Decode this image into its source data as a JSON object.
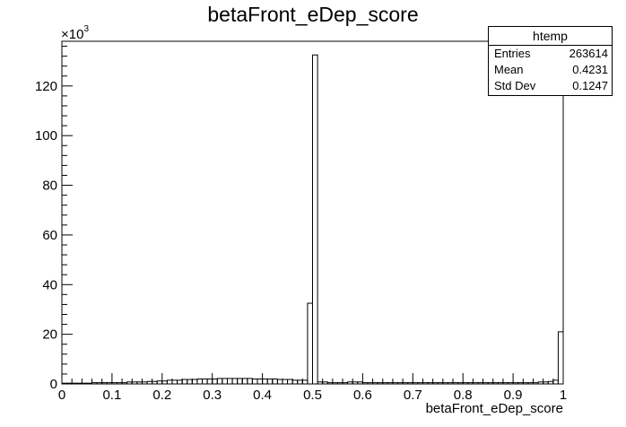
{
  "chart_data": {
    "type": "bar",
    "title": "betaFront_eDep_score",
    "xlabel": "betaFront_eDep_score",
    "ylabel": "",
    "y_multiplier_label": "×10",
    "y_multiplier_exp": "3",
    "xlim": [
      0,
      1
    ],
    "ylim": [
      0,
      138
    ],
    "x_ticks": [
      "0",
      "0.1",
      "0.2",
      "0.3",
      "0.4",
      "0.5",
      "0.6",
      "0.7",
      "0.8",
      "0.9",
      "1"
    ],
    "y_ticks": [
      "0",
      "20",
      "40",
      "60",
      "80",
      "100",
      "120"
    ],
    "bin_width": 0.01,
    "values": [
      0.3,
      0.3,
      0.3,
      0.3,
      0.3,
      0.3,
      0.5,
      0.5,
      0.5,
      0.5,
      0.5,
      0.5,
      0.5,
      0.8,
      0.8,
      0.8,
      0.8,
      1.0,
      1.0,
      1.2,
      1.2,
      1.5,
      1.5,
      1.5,
      1.8,
      1.8,
      1.8,
      2.0,
      2.0,
      2.0,
      2.0,
      2.2,
      2.2,
      2.2,
      2.2,
      2.2,
      2.2,
      2.2,
      2.0,
      2.0,
      2.0,
      2.0,
      2.0,
      1.8,
      1.8,
      1.8,
      1.5,
      1.5,
      1.5,
      32.5,
      132.5,
      0.8,
      0.8,
      0.5,
      0.5,
      0.5,
      0.5,
      0.8,
      0.8,
      0.8,
      0.5,
      0.5,
      0.5,
      0.5,
      0.5,
      0.5,
      0.5,
      0.5,
      0.5,
      0.5,
      0.5,
      0.5,
      0.5,
      0.5,
      0.5,
      0.5,
      0.5,
      0.5,
      0.5,
      0.5,
      0.5,
      0.5,
      0.5,
      0.5,
      0.5,
      0.5,
      0.5,
      0.5,
      0.5,
      0.5,
      0.5,
      0.5,
      0.5,
      0.5,
      0.5,
      0.8,
      0.8,
      1.0,
      1.5,
      21.0
    ],
    "stats": {
      "title": "htemp",
      "rows": [
        {
          "label": "Entries",
          "value": "263614"
        },
        {
          "label": "Mean",
          "value": "0.4231"
        },
        {
          "label": "Std Dev",
          "value": "0.1247"
        }
      ]
    },
    "legend_position": "top-right"
  },
  "colors": {
    "line": "#000000",
    "background": "#ffffff"
  }
}
